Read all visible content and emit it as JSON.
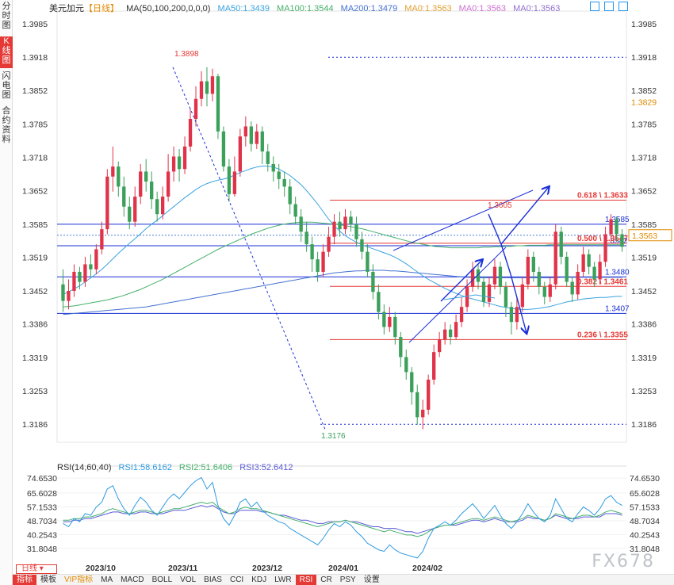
{
  "sidebar": {
    "tabs": [
      {
        "label": "分时图",
        "active": false
      },
      {
        "label": "K线图",
        "active": true
      },
      {
        "label": "闪电图",
        "active": false
      },
      {
        "label": "合约资料",
        "active": false
      }
    ]
  },
  "legend": {
    "symbol": "美元加元",
    "period": "【日线】",
    "ma_label": "MA(50,100,200,0,0,0)",
    "ma50": "MA50:1.3439",
    "ma100": "MA100:1.3544",
    "ma200": "MA200:1.3479",
    "ma0a": "MA0:1.3563",
    "ma0b": "MA0:1.3563",
    "ma0c": "MA0:1.3563"
  },
  "rsi_legend": {
    "label": "RSI(14,60,40)",
    "rsi1": "RSI1:58.6162",
    "rsi2": "RSI2:51.6406",
    "rsi3": "RSI3:52.6412"
  },
  "colors": {
    "up": "#e0334a",
    "down": "#3aa05a",
    "ma50": "#3aa3e0",
    "ma100": "#44b06a",
    "ma200": "#4470d0",
    "fib": "#e53935",
    "hline": "#1a2fd6",
    "draw": "#1a2fd6",
    "rsi1": "#2f9be0",
    "rsi2": "#44b06a",
    "rsi3": "#5a5ad8"
  },
  "chart_data": {
    "type": "candlestick",
    "title": "美元加元【日线】",
    "ylim": [
      1.315,
      1.401
    ],
    "y_ticks": [
      "1.3985",
      "1.3918",
      "1.3852",
      "1.3785",
      "1.3718",
      "1.3652",
      "1.3585",
      "1.3519",
      "1.3452",
      "1.3386",
      "1.3319",
      "1.3253",
      "1.3186"
    ],
    "x_ticks": [
      "2023/10",
      "2023/11",
      "2023/12",
      "2024/01",
      "2024/02"
    ],
    "current_price": "1.3563",
    "right_marker": "1.3829",
    "high_label": "1.3898",
    "low_label": "1.3176",
    "recent_high_label": "1.3605",
    "hlines": [
      {
        "label": "1.3918",
        "value": 1.3918,
        "style": "dotted"
      },
      {
        "label": "1.3585",
        "value": 1.3585,
        "style": "solid"
      },
      {
        "label": "1.3542",
        "value": 1.3542,
        "style": "solid"
      },
      {
        "label": "1.3480",
        "value": 1.348,
        "style": "solid"
      },
      {
        "label": "1.3407",
        "value": 1.3407,
        "style": "solid"
      },
      {
        "label": "1.3186",
        "value": 1.3186,
        "style": "dotted"
      }
    ],
    "fib_levels": [
      {
        "label": "0.618 \\ 1.3633",
        "value": 1.3633
      },
      {
        "label": "0.500 \\ 1.3547",
        "value": 1.3547
      },
      {
        "label": "0.382 \\ 1.3461",
        "value": 1.3461
      },
      {
        "label": "0.236 \\ 1.3355",
        "value": 1.3355
      }
    ],
    "candles": [
      [
        1.3465,
        1.3432,
        1.3495,
        1.341
      ],
      [
        1.3432,
        1.3452,
        1.3475,
        1.3415
      ],
      [
        1.3452,
        1.349,
        1.3505,
        1.344
      ],
      [
        1.349,
        1.347,
        1.35,
        1.3455
      ],
      [
        1.347,
        1.3505,
        1.352,
        1.346
      ],
      [
        1.3505,
        1.3495,
        1.3525,
        1.348
      ],
      [
        1.3495,
        1.3535,
        1.3545,
        1.3485
      ],
      [
        1.3535,
        1.3575,
        1.359,
        1.3525
      ],
      [
        1.3575,
        1.368,
        1.3695,
        1.3565
      ],
      [
        1.368,
        1.37,
        1.374,
        1.365
      ],
      [
        1.37,
        1.366,
        1.371,
        1.364
      ],
      [
        1.366,
        1.362,
        1.368,
        1.36
      ],
      [
        1.362,
        1.359,
        1.364,
        1.3575
      ],
      [
        1.359,
        1.364,
        1.366,
        1.358
      ],
      [
        1.364,
        1.369,
        1.3705,
        1.3625
      ],
      [
        1.369,
        1.367,
        1.3715,
        1.365
      ],
      [
        1.367,
        1.3635,
        1.369,
        1.3615
      ],
      [
        1.3635,
        1.3605,
        1.365,
        1.359
      ],
      [
        1.3605,
        1.364,
        1.366,
        1.3595
      ],
      [
        1.364,
        1.369,
        1.3725,
        1.363
      ],
      [
        1.369,
        1.372,
        1.374,
        1.367
      ],
      [
        1.372,
        1.3695,
        1.3735,
        1.367
      ],
      [
        1.3695,
        1.374,
        1.376,
        1.3685
      ],
      [
        1.374,
        1.3795,
        1.3815,
        1.373
      ],
      [
        1.3795,
        1.3835,
        1.386,
        1.378
      ],
      [
        1.3835,
        1.387,
        1.389,
        1.382
      ],
      [
        1.387,
        1.3845,
        1.3898,
        1.382
      ],
      [
        1.3845,
        1.388,
        1.3895,
        1.383
      ],
      [
        1.388,
        1.377,
        1.3885,
        1.3755
      ],
      [
        1.377,
        1.37,
        1.378,
        1.369
      ],
      [
        1.37,
        1.3645,
        1.3715,
        1.363
      ],
      [
        1.3645,
        1.369,
        1.372,
        1.364
      ],
      [
        1.369,
        1.376,
        1.3775,
        1.368
      ],
      [
        1.376,
        1.378,
        1.38,
        1.374
      ],
      [
        1.378,
        1.3745,
        1.379,
        1.373
      ],
      [
        1.3745,
        1.377,
        1.3785,
        1.3735
      ],
      [
        1.377,
        1.373,
        1.378,
        1.3705
      ],
      [
        1.373,
        1.3705,
        1.3745,
        1.369
      ],
      [
        1.3705,
        1.369,
        1.372,
        1.367
      ],
      [
        1.369,
        1.3675,
        1.3705,
        1.3655
      ],
      [
        1.3675,
        1.366,
        1.369,
        1.364
      ],
      [
        1.366,
        1.3625,
        1.3675,
        1.3605
      ],
      [
        1.3625,
        1.36,
        1.364,
        1.3585
      ],
      [
        1.36,
        1.357,
        1.3615,
        1.355
      ],
      [
        1.357,
        1.3545,
        1.359,
        1.353
      ],
      [
        1.3545,
        1.3515,
        1.356,
        1.349
      ],
      [
        1.3515,
        1.349,
        1.353,
        1.347
      ],
      [
        1.349,
        1.353,
        1.3545,
        1.348
      ],
      [
        1.353,
        1.356,
        1.358,
        1.352
      ],
      [
        1.356,
        1.359,
        1.3605,
        1.3545
      ],
      [
        1.359,
        1.3575,
        1.361,
        1.356
      ],
      [
        1.3575,
        1.36,
        1.3615,
        1.3565
      ],
      [
        1.36,
        1.3585,
        1.3612,
        1.357
      ],
      [
        1.3585,
        1.3555,
        1.36,
        1.354
      ],
      [
        1.3555,
        1.353,
        1.357,
        1.3515
      ],
      [
        1.353,
        1.349,
        1.3545,
        1.348
      ],
      [
        1.349,
        1.345,
        1.3505,
        1.3435
      ],
      [
        1.345,
        1.341,
        1.3465,
        1.3395
      ],
      [
        1.341,
        1.338,
        1.3425,
        1.3365
      ],
      [
        1.338,
        1.34,
        1.342,
        1.337
      ],
      [
        1.34,
        1.336,
        1.341,
        1.3345
      ],
      [
        1.336,
        1.332,
        1.337,
        1.33
      ],
      [
        1.332,
        1.329,
        1.3335,
        1.3275
      ],
      [
        1.329,
        1.325,
        1.33,
        1.3225
      ],
      [
        1.325,
        1.32,
        1.3265,
        1.3185
      ],
      [
        1.32,
        1.3215,
        1.3235,
        1.3176
      ],
      [
        1.3215,
        1.3275,
        1.3285,
        1.3205
      ],
      [
        1.3275,
        1.333,
        1.3345,
        1.3265
      ],
      [
        1.333,
        1.3355,
        1.337,
        1.332
      ],
      [
        1.3355,
        1.3375,
        1.339,
        1.3345
      ],
      [
        1.3375,
        1.336,
        1.3385,
        1.3345
      ],
      [
        1.336,
        1.339,
        1.3405,
        1.3355
      ],
      [
        1.339,
        1.342,
        1.344,
        1.338
      ],
      [
        1.342,
        1.346,
        1.3475,
        1.341
      ],
      [
        1.346,
        1.3495,
        1.351,
        1.345
      ],
      [
        1.3495,
        1.347,
        1.3505,
        1.3455
      ],
      [
        1.347,
        1.343,
        1.348,
        1.342
      ],
      [
        1.343,
        1.3465,
        1.348,
        1.342
      ],
      [
        1.3465,
        1.35,
        1.3515,
        1.3455
      ],
      [
        1.35,
        1.346,
        1.351,
        1.3445
      ],
      [
        1.346,
        1.342,
        1.347,
        1.34
      ],
      [
        1.342,
        1.339,
        1.343,
        1.3365
      ],
      [
        1.339,
        1.342,
        1.344,
        1.3375
      ],
      [
        1.342,
        1.3465,
        1.348,
        1.341
      ],
      [
        1.3465,
        1.352,
        1.3535,
        1.3455
      ],
      [
        1.352,
        1.349,
        1.353,
        1.347
      ],
      [
        1.349,
        1.346,
        1.35,
        1.3445
      ],
      [
        1.346,
        1.344,
        1.347,
        1.3425
      ],
      [
        1.344,
        1.3465,
        1.348,
        1.343
      ],
      [
        1.3465,
        1.357,
        1.3585,
        1.3455
      ],
      [
        1.357,
        1.352,
        1.358,
        1.3505
      ],
      [
        1.352,
        1.347,
        1.353,
        1.346
      ],
      [
        1.347,
        1.3445,
        1.348,
        1.343
      ],
      [
        1.3445,
        1.349,
        1.3505,
        1.3435
      ],
      [
        1.349,
        1.3525,
        1.354,
        1.348
      ],
      [
        1.3525,
        1.35,
        1.3535,
        1.3485
      ],
      [
        1.35,
        1.3475,
        1.351,
        1.346
      ],
      [
        1.3475,
        1.351,
        1.3525,
        1.3465
      ],
      [
        1.351,
        1.3565,
        1.358,
        1.35
      ],
      [
        1.3565,
        1.3595,
        1.3605,
        1.355
      ],
      [
        1.3595,
        1.3565,
        1.36,
        1.355
      ],
      [
        1.3565,
        1.354,
        1.3575,
        1.353
      ]
    ],
    "ma50_values": [
      1.3445,
      1.345,
      1.3456,
      1.3462,
      1.347,
      1.3478,
      1.3486,
      1.3495,
      1.3505,
      1.3516,
      1.3527,
      1.3537,
      1.3547,
      1.3556,
      1.3566,
      1.3576,
      1.3585,
      1.3593,
      1.3602,
      1.3611,
      1.362,
      1.3629,
      1.3638,
      1.3646,
      1.3654,
      1.3661,
      1.3666,
      1.367,
      1.3673,
      1.3675,
      1.3678,
      1.3683,
      1.3688,
      1.3692,
      1.3696,
      1.3699,
      1.3701,
      1.3701,
      1.3699,
      1.3695,
      1.3689,
      1.3682,
      1.3673,
      1.3664,
      1.3652,
      1.3639,
      1.3625,
      1.361,
      1.3595,
      1.3582,
      1.3571,
      1.3562,
      1.3555,
      1.3549,
      1.3544,
      1.354,
      1.3536,
      1.3532,
      1.3528,
      1.3524,
      1.3519,
      1.3513,
      1.3506,
      1.3498,
      1.349,
      1.3482,
      1.3475,
      1.3469,
      1.3463,
      1.3457,
      1.3452,
      1.3447,
      1.3443,
      1.3439,
      1.3436,
      1.3433,
      1.343,
      1.3427,
      1.3424,
      1.3421,
      1.3419,
      1.3417,
      1.3416,
      1.3415,
      1.3415,
      1.3416,
      1.3417,
      1.3419,
      1.3421,
      1.3424,
      1.3427,
      1.343,
      1.3432,
      1.3434,
      1.3436,
      1.3437,
      1.3438,
      1.3439,
      1.3439,
      1.344,
      1.3441,
      1.3441
    ],
    "ma100_values": [
      1.342,
      1.3421,
      1.3422,
      1.3424,
      1.3426,
      1.3428,
      1.343,
      1.3432,
      1.3434,
      1.3437,
      1.344,
      1.3443,
      1.3447,
      1.3451,
      1.3455,
      1.346,
      1.3465,
      1.347,
      1.3475,
      1.3481,
      1.3487,
      1.3493,
      1.3499,
      1.3505,
      1.3511,
      1.3517,
      1.3523,
      1.3529,
      1.3535,
      1.354,
      1.3545,
      1.355,
      1.3555,
      1.356,
      1.3565,
      1.3569,
      1.3573,
      1.3577,
      1.358,
      1.3583,
      1.3585,
      1.3587,
      1.3588,
      1.3589,
      1.3589,
      1.3589,
      1.3588,
      1.3587,
      1.3586,
      1.3585,
      1.3584,
      1.3582,
      1.358,
      1.3578,
      1.3576,
      1.3573,
      1.357,
      1.3567,
      1.3564,
      1.3561,
      1.3558,
      1.3555,
      1.3552,
      1.3549,
      1.3547,
      1.3545,
      1.3543,
      1.3541,
      1.354,
      1.3539,
      1.3538,
      1.3538,
      1.3538,
      1.3538,
      1.3538,
      1.3538,
      1.3539,
      1.3539,
      1.354,
      1.354,
      1.3541,
      1.3541,
      1.3542,
      1.3542,
      1.3543,
      1.3543,
      1.3543,
      1.3543,
      1.3544,
      1.3544,
      1.3544,
      1.3544,
      1.3544,
      1.3544,
      1.3544,
      1.3544,
      1.3544,
      1.3544,
      1.3544,
      1.3544,
      1.3544,
      1.3544
    ],
    "ma200_values": [
      1.3405,
      1.3406,
      1.3407,
      1.3408,
      1.3409,
      1.341,
      1.3411,
      1.3412,
      1.3413,
      1.3414,
      1.3415,
      1.3416,
      1.3417,
      1.3418,
      1.3419,
      1.342,
      1.3422,
      1.3424,
      1.3426,
      1.3428,
      1.343,
      1.3432,
      1.3434,
      1.3436,
      1.3438,
      1.344,
      1.3442,
      1.3444,
      1.3446,
      1.3448,
      1.345,
      1.3452,
      1.3454,
      1.3456,
      1.3458,
      1.346,
      1.3462,
      1.3464,
      1.3466,
      1.3468,
      1.347,
      1.3472,
      1.3474,
      1.3476,
      1.3478,
      1.348,
      1.3482,
      1.3484,
      1.3486,
      1.3488,
      1.3489,
      1.349,
      1.3491,
      1.3492,
      1.3492,
      1.3493,
      1.3493,
      1.3493,
      1.3493,
      1.3492,
      1.3492,
      1.3491,
      1.349,
      1.3489,
      1.3488,
      1.3487,
      1.3486,
      1.3485,
      1.3484,
      1.3483,
      1.3482,
      1.3481,
      1.348,
      1.3479,
      1.3479,
      1.3478,
      1.3478,
      1.3478,
      1.3478,
      1.3478,
      1.3478,
      1.3478,
      1.3478,
      1.3478,
      1.3478,
      1.3478,
      1.3478,
      1.3478,
      1.3478,
      1.3478,
      1.3479,
      1.3479,
      1.3479,
      1.3479,
      1.3479,
      1.3479,
      1.3479,
      1.3479,
      1.3479,
      1.3479,
      1.3479,
      1.3479
    ],
    "rsi": {
      "ylim": [
        25,
        80
      ],
      "y_ticks": [
        "74.6530",
        "65.6028",
        "57.1533",
        "48.7034",
        "40.2543",
        "31.8048"
      ],
      "rsi1": [
        47,
        45,
        50,
        48,
        53,
        52,
        57,
        60,
        68,
        70,
        62,
        56,
        52,
        58,
        63,
        60,
        55,
        52,
        57,
        62,
        65,
        62,
        66,
        70,
        73,
        75,
        68,
        72,
        58,
        50,
        46,
        52,
        60,
        62,
        57,
        60,
        55,
        52,
        50,
        48,
        47,
        44,
        42,
        40,
        38,
        36,
        34,
        38,
        43,
        47,
        45,
        48,
        46,
        42,
        39,
        35,
        33,
        31,
        30,
        34,
        31,
        29,
        28,
        27,
        26,
        30,
        38,
        44,
        46,
        48,
        46,
        49,
        53,
        56,
        59,
        55,
        50,
        54,
        58,
        52,
        47,
        44,
        48,
        53,
        59,
        54,
        50,
        48,
        52,
        62,
        56,
        50,
        48,
        53,
        57,
        55,
        52,
        56,
        62,
        64,
        60,
        58
      ],
      "rsi2": [
        49,
        49,
        50,
        50,
        51,
        51,
        52,
        53,
        55,
        56,
        55,
        54,
        53,
        54,
        55,
        55,
        54,
        53,
        54,
        55,
        56,
        56,
        57,
        58,
        59,
        60,
        59,
        60,
        57,
        55,
        53,
        54,
        56,
        57,
        56,
        56,
        55,
        54,
        53,
        52,
        51,
        50,
        49,
        48,
        47,
        46,
        45,
        46,
        47,
        48,
        48,
        49,
        48,
        47,
        46,
        45,
        44,
        43,
        42,
        43,
        42,
        41,
        40,
        40,
        39,
        40,
        42,
        44,
        45,
        46,
        46,
        47,
        48,
        49,
        50,
        50,
        49,
        50,
        51,
        50,
        49,
        48,
        49,
        50,
        52,
        51,
        50,
        49,
        50,
        53,
        52,
        51,
        50,
        51,
        52,
        52,
        51,
        52,
        54,
        55,
        54,
        53
      ],
      "rsi3": [
        48,
        48,
        49,
        49,
        50,
        50,
        51,
        52,
        53,
        54,
        54,
        53,
        53,
        53,
        54,
        54,
        53,
        53,
        53,
        54,
        55,
        55,
        55,
        56,
        57,
        58,
        57,
        58,
        56,
        54,
        53,
        53,
        55,
        55,
        55,
        55,
        54,
        54,
        53,
        52,
        52,
        51,
        50,
        49,
        49,
        48,
        47,
        47,
        48,
        48,
        48,
        49,
        48,
        48,
        47,
        46,
        45,
        45,
        44,
        44,
        44,
        43,
        42,
        42,
        41,
        42,
        43,
        44,
        45,
        46,
        46,
        46,
        47,
        48,
        49,
        49,
        48,
        49,
        50,
        49,
        48,
        48,
        48,
        49,
        51,
        50,
        50,
        49,
        50,
        52,
        51,
        50,
        50,
        50,
        51,
        51,
        51,
        51,
        53,
        53,
        53,
        52
      ]
    }
  },
  "bottom_bar": {
    "period": "日线",
    "items": [
      "指标",
      "模板",
      "VIP指标",
      "MA",
      "MACD",
      "BOLL",
      "VOL",
      "BIAS",
      "CCI",
      "KDJ",
      "LWR",
      "RSI",
      "CR",
      "PSY",
      "设置"
    ]
  },
  "watermark": "FX678"
}
